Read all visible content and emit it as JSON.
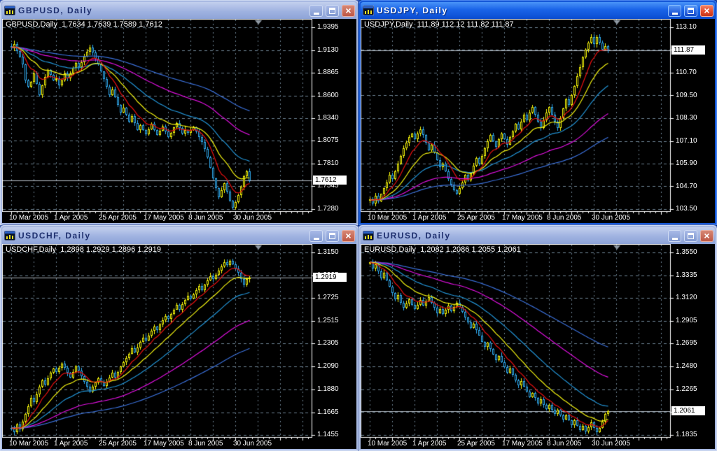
{
  "colors": {
    "bull": "#f5f50a",
    "bear": "#2fa8ec",
    "grid": "#6b8090",
    "plot_border": "#ffffff",
    "price_line": "#b0b8c0",
    "ma_fast": "#e81010",
    "ma_mid": "#f0f010",
    "ma_slow": "#2293d5",
    "ma_slower": "#dd10dd",
    "ma_slowest": "#3a6fd8",
    "axis_text": "#ffffff",
    "triangle": "#8e98a2",
    "active_titlebar": "#1a64e8",
    "inactive_titlebar": "#9fb2e0",
    "chart_background": "#000000"
  },
  "ma_periods": {
    "fast": 8,
    "mid": 17,
    "slow": 34,
    "slower": 68,
    "slowest": 120
  },
  "windows": [
    {
      "symbol": "GBPUSD",
      "timeframe": "Daily",
      "title": "GBPUSD, Daily",
      "active": false,
      "info": "GBPUSD,Daily  1.7634 1.7639 1.7589 1.7612",
      "ohlc": {
        "open": "1.7634",
        "high": "1.7639",
        "low": "1.7589",
        "close": "1.7612"
      },
      "current_price_label": "1.7612",
      "chart_data": {
        "type": "candlestick",
        "y_ticks": [
          "1.9395",
          "1.9130",
          "1.8865",
          "1.8600",
          "1.8340",
          "1.8075",
          "1.7810",
          "1.7545",
          "1.7280"
        ],
        "x_dates": [
          "10 Mar 2005",
          "1 Apr 2005",
          "25 Apr 2005",
          "17 May 2005",
          "8 Jun 2005",
          "30 Jun 2005"
        ],
        "current_price": 1.7612,
        "closes": [
          1.916,
          1.92,
          1.912,
          1.905,
          1.896,
          1.878,
          1.87,
          1.876,
          1.886,
          1.874,
          1.861,
          1.872,
          1.882,
          1.89,
          1.884,
          1.878,
          1.88,
          1.872,
          1.878,
          1.886,
          1.88,
          1.886,
          1.892,
          1.898,
          1.893,
          1.899,
          1.905,
          1.911,
          1.916,
          1.91,
          1.903,
          1.896,
          1.888,
          1.879,
          1.87,
          1.861,
          1.867,
          1.858,
          1.849,
          1.84,
          1.846,
          1.838,
          1.83,
          1.836,
          1.828,
          1.82,
          1.826,
          1.82,
          1.815,
          1.821,
          1.827,
          1.82,
          1.814,
          1.819,
          1.824,
          1.818,
          1.812,
          1.817,
          1.823,
          1.828,
          1.822,
          1.816,
          1.82,
          1.817,
          1.82,
          1.823,
          1.818,
          1.812,
          1.806,
          1.798,
          1.788,
          1.776,
          1.764,
          1.752,
          1.742,
          1.75,
          1.758,
          1.748,
          1.738,
          1.73,
          1.736,
          1.744,
          1.754,
          1.766,
          1.772,
          1.7612
        ]
      }
    },
    {
      "symbol": "USDJPY",
      "timeframe": "Daily",
      "title": "USDJPY, Daily",
      "active": true,
      "info": "USDJPY,Daily  111.89 112.12 111.82 111.87",
      "ohlc": {
        "open": "111.89",
        "high": "112.12",
        "low": "111.82",
        "close": "111.87"
      },
      "current_price_label": "111.87",
      "chart_data": {
        "type": "candlestick",
        "y_ticks": [
          "113.10",
          "111.90",
          "110.70",
          "109.50",
          "108.30",
          "107.10",
          "105.90",
          "104.70",
          "103.50"
        ],
        "x_dates": [
          "10 Mar 2005",
          "1 Apr 2005",
          "25 Apr 2005",
          "17 May 2005",
          "8 Jun 2005",
          "30 Jun 2005"
        ],
        "current_price": 111.87,
        "closes": [
          104.0,
          103.8,
          104.2,
          103.9,
          104.3,
          104.6,
          104.9,
          105.3,
          105.1,
          105.5,
          105.9,
          106.3,
          106.7,
          107.0,
          107.3,
          107.5,
          107.2,
          107.5,
          107.7,
          107.4,
          107.0,
          106.6,
          106.9,
          106.5,
          106.1,
          105.7,
          105.9,
          105.5,
          105.1,
          104.8,
          104.5,
          104.3,
          104.6,
          104.9,
          105.3,
          105.0,
          105.4,
          105.8,
          106.2,
          105.9,
          106.3,
          106.7,
          107.1,
          107.4,
          107.1,
          106.8,
          107.2,
          107.5,
          107.2,
          106.9,
          107.3,
          107.6,
          108.0,
          107.7,
          108.1,
          108.5,
          108.2,
          108.6,
          108.9,
          108.5,
          108.1,
          107.8,
          108.2,
          108.6,
          108.9,
          108.5,
          108.1,
          107.8,
          108.3,
          108.8,
          109.3,
          109.0,
          109.5,
          110.0,
          110.5,
          111.0,
          111.5,
          111.9,
          112.3,
          112.6,
          112.2,
          112.6,
          112.3,
          111.9,
          112.1,
          111.87
        ]
      }
    },
    {
      "symbol": "USDCHF",
      "timeframe": "Daily",
      "title": "USDCHF, Daily",
      "active": false,
      "info": "USDCHF,Daily  1.2898 1.2929 1.2896 1.2919",
      "ohlc": {
        "open": "1.2898",
        "high": "1.2929",
        "low": "1.2896",
        "close": "1.2919"
      },
      "current_price_label": "1.2919",
      "chart_data": {
        "type": "candlestick",
        "y_ticks": [
          "1.3150",
          "1.2935",
          "1.2725",
          "1.2515",
          "1.2305",
          "1.2090",
          "1.1880",
          "1.1665",
          "1.1455"
        ],
        "x_dates": [
          "10 Mar 2005",
          "1 Apr 2005",
          "25 Apr 2005",
          "17 May 2005",
          "8 Jun 2005",
          "30 Jun 2005"
        ],
        "current_price": 1.2919,
        "closes": [
          1.152,
          1.148,
          1.155,
          1.151,
          1.158,
          1.165,
          1.172,
          1.18,
          1.176,
          1.183,
          1.19,
          1.196,
          1.192,
          1.198,
          1.203,
          1.207,
          1.204,
          1.208,
          1.212,
          1.208,
          1.203,
          1.199,
          1.204,
          1.209,
          1.205,
          1.2,
          1.195,
          1.19,
          1.186,
          1.19,
          1.194,
          1.198,
          1.195,
          1.191,
          1.195,
          1.199,
          1.203,
          1.199,
          1.204,
          1.209,
          1.213,
          1.217,
          1.221,
          1.226,
          1.222,
          1.227,
          1.232,
          1.236,
          1.233,
          1.238,
          1.242,
          1.246,
          1.243,
          1.248,
          1.252,
          1.256,
          1.253,
          1.258,
          1.262,
          1.266,
          1.262,
          1.267,
          1.271,
          1.275,
          1.272,
          1.276,
          1.28,
          1.284,
          1.28,
          1.285,
          1.289,
          1.293,
          1.29,
          1.294,
          1.298,
          1.302,
          1.306,
          1.303,
          1.307,
          1.304,
          1.3,
          1.296,
          1.29,
          1.285,
          1.29,
          1.2919
        ]
      }
    },
    {
      "symbol": "EURUSD",
      "timeframe": "Daily",
      "title": "EURUSD, Daily",
      "active": false,
      "info": "EURUSD,Daily  1.2082 1.2086 1.2055 1.2061",
      "ohlc": {
        "open": "1.2082",
        "high": "1.2086",
        "low": "1.2055",
        "close": "1.2061"
      },
      "current_price_label": "1.2061",
      "chart_data": {
        "type": "candlestick",
        "y_ticks": [
          "1.3550",
          "1.3335",
          "1.3120",
          "1.2905",
          "1.2695",
          "1.2480",
          "1.2265",
          "1.2050",
          "1.1835"
        ],
        "x_dates": [
          "10 Mar 2005",
          "1 Apr 2005",
          "25 Apr 2005",
          "17 May 2005",
          "8 Jun 2005",
          "30 Jun 2005"
        ],
        "current_price": 1.2061,
        "closes": [
          1.346,
          1.34,
          1.344,
          1.337,
          1.331,
          1.336,
          1.329,
          1.323,
          1.317,
          1.311,
          1.315,
          1.308,
          1.303,
          1.307,
          1.311,
          1.306,
          1.302,
          1.306,
          1.31,
          1.305,
          1.309,
          1.313,
          1.308,
          1.303,
          1.298,
          1.302,
          1.297,
          1.301,
          1.305,
          1.3,
          1.304,
          1.308,
          1.304,
          1.299,
          1.294,
          1.289,
          1.284,
          1.288,
          1.282,
          1.277,
          1.271,
          1.266,
          1.27,
          1.264,
          1.259,
          1.254,
          1.258,
          1.252,
          1.247,
          1.242,
          1.246,
          1.24,
          1.235,
          1.23,
          1.234,
          1.229,
          1.224,
          1.219,
          1.223,
          1.218,
          1.213,
          1.217,
          1.212,
          1.208,
          1.212,
          1.207,
          1.203,
          1.207,
          1.202,
          1.198,
          1.202,
          1.197,
          1.193,
          1.197,
          1.192,
          1.188,
          1.192,
          1.187,
          1.191,
          1.195,
          1.19,
          1.186,
          1.19,
          1.196,
          1.203,
          1.2061
        ]
      }
    }
  ]
}
